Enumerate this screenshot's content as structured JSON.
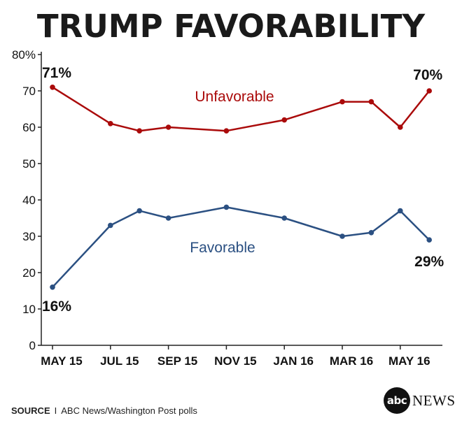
{
  "title": "TRUMP FAVORABILITY",
  "source": {
    "label": "SOURCE",
    "separator": "I",
    "text": "ABC News/Washington Post polls"
  },
  "logo": {
    "mark": "abc",
    "word": "NEWS"
  },
  "chart_data": {
    "type": "line",
    "x": [
      0,
      2,
      3,
      4,
      6,
      8,
      10,
      11,
      12,
      13
    ],
    "x_tick_labels": [
      {
        "x": 0,
        "label": "MAY 15"
      },
      {
        "x": 2,
        "label": "JUL 15"
      },
      {
        "x": 4,
        "label": "SEP 15"
      },
      {
        "x": 6,
        "label": "NOV 15"
      },
      {
        "x": 8,
        "label": "JAN 16"
      },
      {
        "x": 10,
        "label": "MAR 16"
      },
      {
        "x": 12,
        "label": "MAY 16"
      }
    ],
    "xlim": [
      0,
      13
    ],
    "ylim": [
      0,
      80
    ],
    "y_ticks": [
      0,
      10,
      20,
      30,
      40,
      50,
      60,
      70,
      80
    ],
    "y_tick_labels": [
      "0",
      "10",
      "20",
      "30",
      "40",
      "50",
      "60",
      "70",
      "80%"
    ],
    "series": [
      {
        "name": "Unfavorable",
        "color": "#aa0a0a",
        "values": [
          71,
          61,
          59,
          60,
          59,
          62,
          67,
          67,
          60,
          70
        ],
        "end_labels": [
          "71%",
          "70%"
        ]
      },
      {
        "name": "Favorable",
        "color": "#2b5082",
        "values": [
          16,
          33,
          37,
          35,
          38,
          35,
          30,
          31,
          37,
          29
        ],
        "end_labels": [
          "16%",
          "29%"
        ]
      }
    ]
  }
}
